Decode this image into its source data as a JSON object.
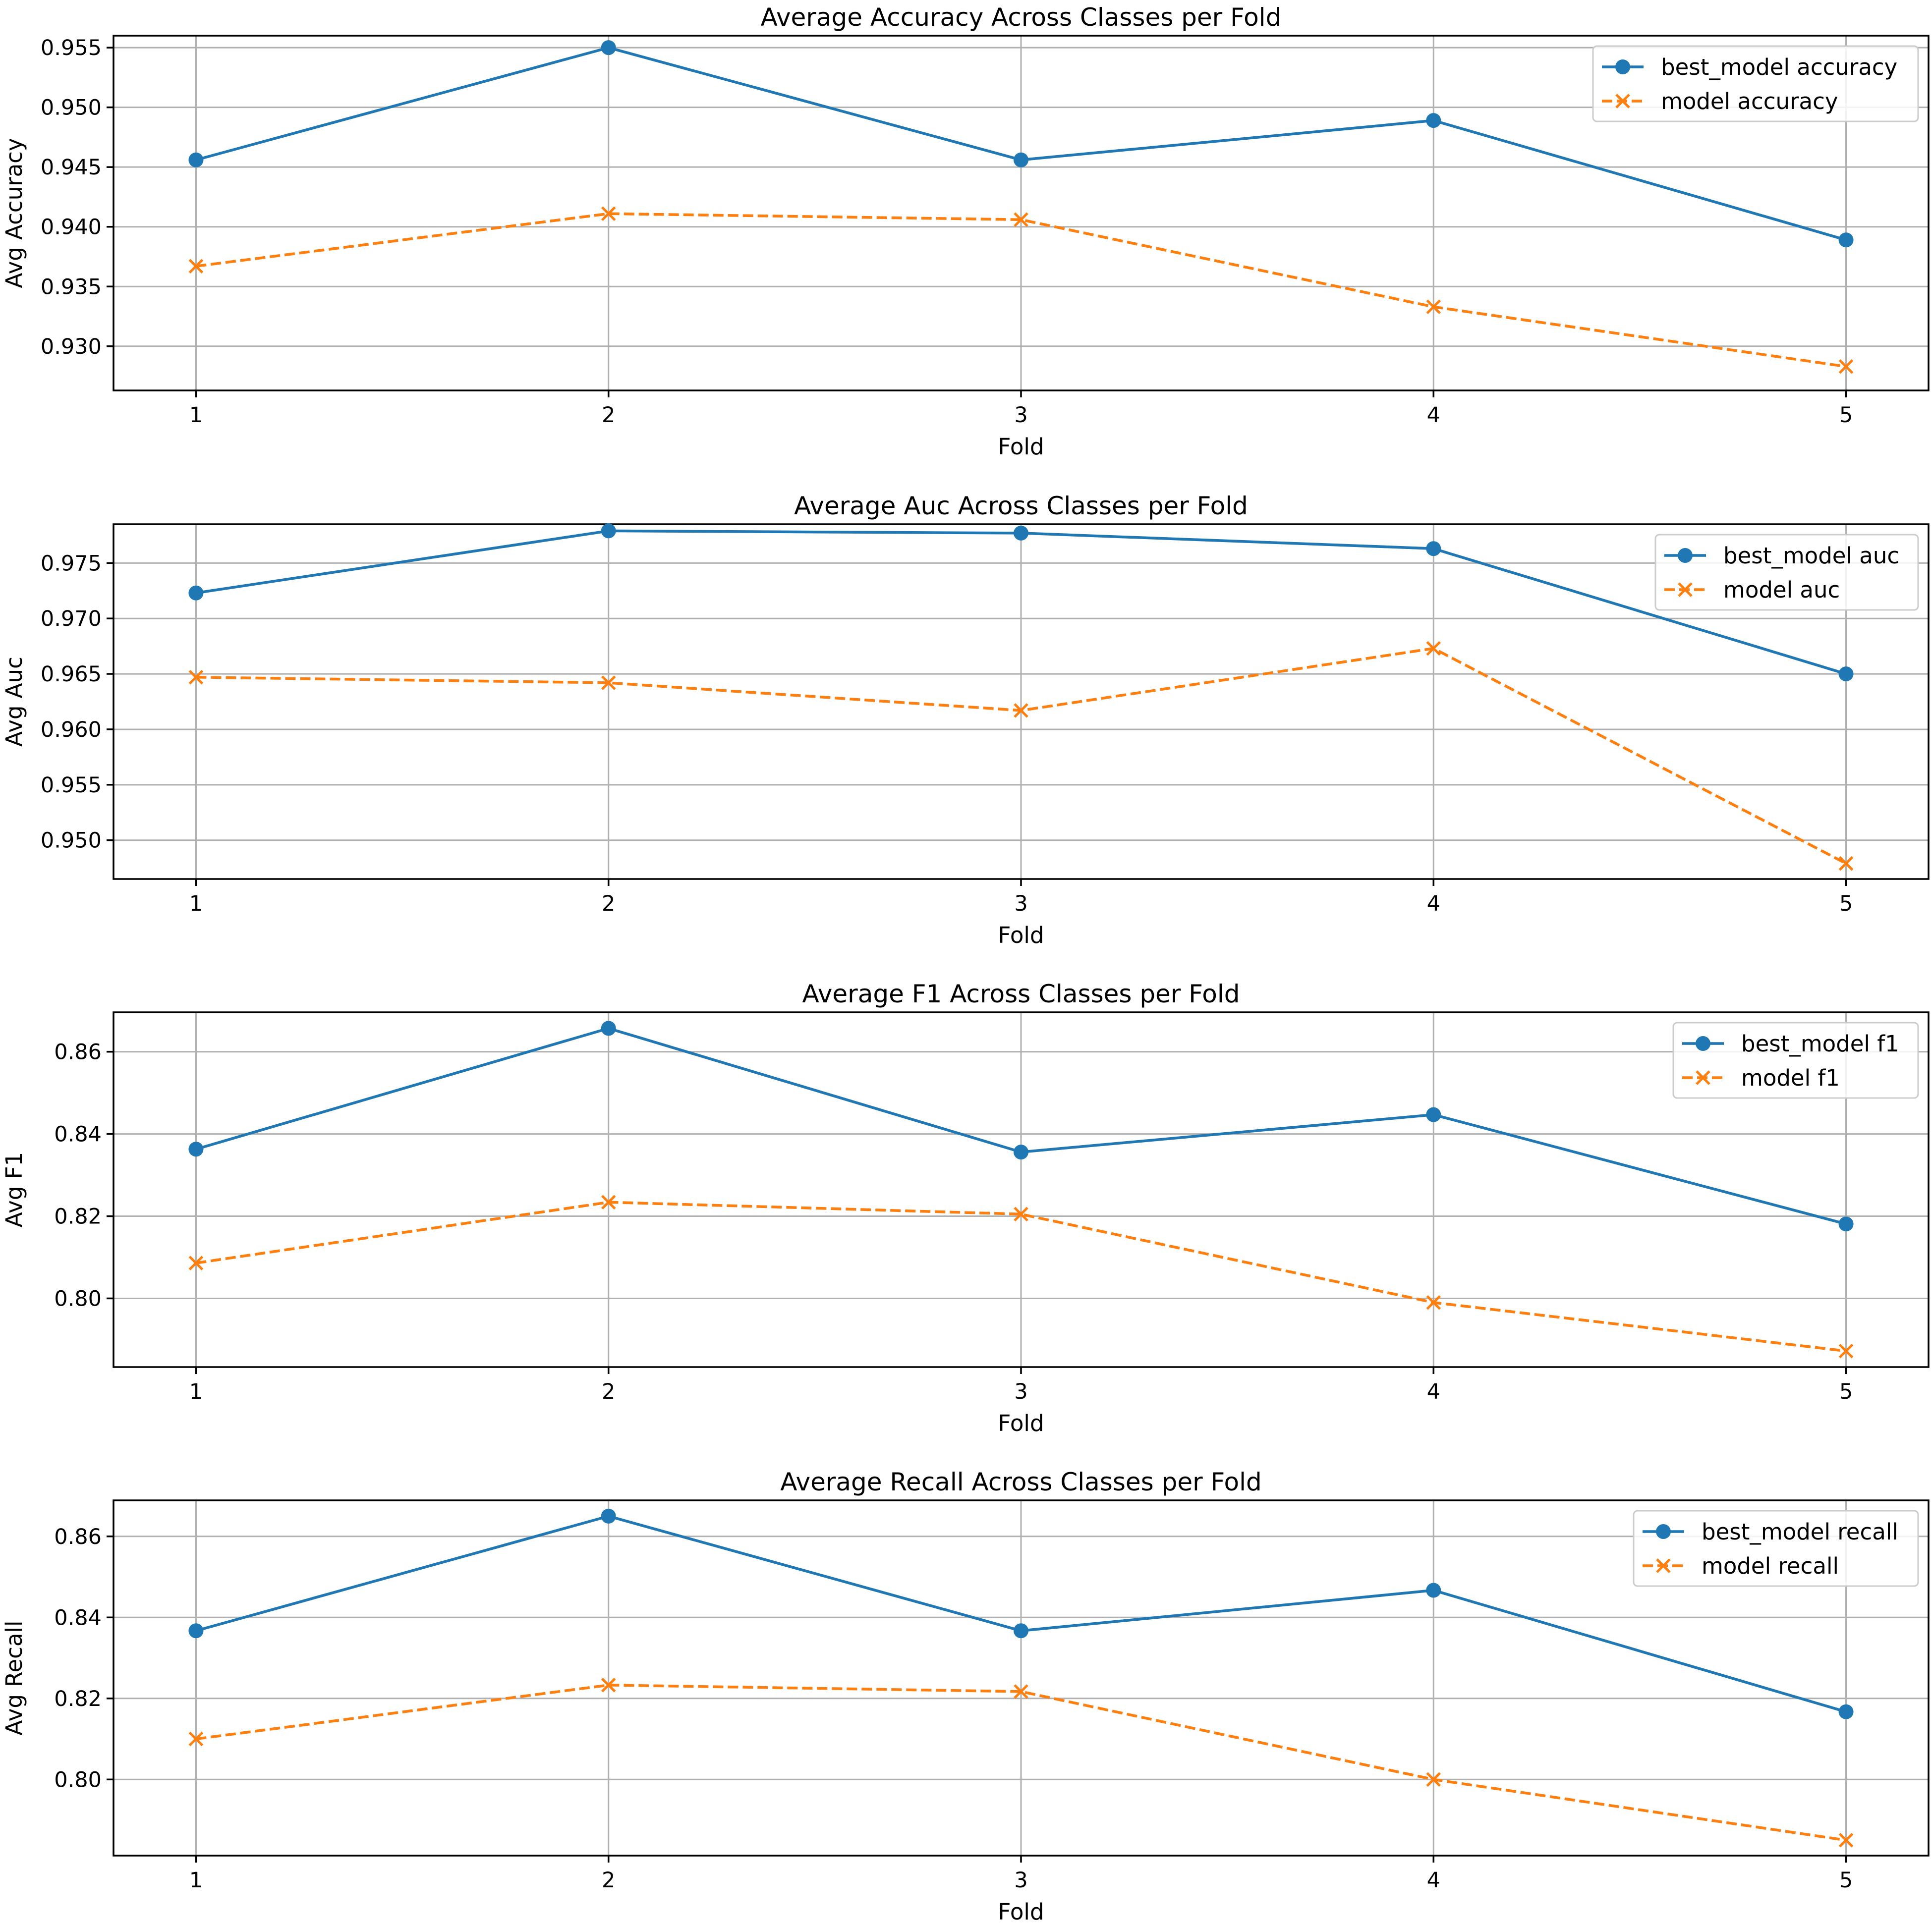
{
  "chart_data": [
    {
      "type": "line",
      "title": "Average Accuracy Across Classes per Fold",
      "xlabel": "Fold",
      "ylabel": "Avg Accuracy",
      "x": [
        1,
        2,
        3,
        4,
        5
      ],
      "x_ticks": [
        "1",
        "2",
        "3",
        "4",
        "5"
      ],
      "xlim": [
        0.8,
        5.2
      ],
      "ylim": [
        0.9263,
        0.956
      ],
      "y_ticks": [
        0.93,
        0.935,
        0.94,
        0.945,
        0.95,
        0.955
      ],
      "y_tick_labels": [
        "0.930",
        "0.935",
        "0.940",
        "0.945",
        "0.950",
        "0.955"
      ],
      "grid": true,
      "legend_position": "top-right",
      "series": [
        {
          "name": "best_model accuracy",
          "color": "#1f77b4",
          "style": "solid",
          "marker": "circle",
          "values": [
            0.9456,
            0.955,
            0.9456,
            0.9489,
            0.9389
          ]
        },
        {
          "name": "model accuracy",
          "color": "#ff7f0e",
          "style": "dashed",
          "marker": "x",
          "values": [
            0.9367,
            0.9411,
            0.9406,
            0.9333,
            0.9283
          ]
        }
      ]
    },
    {
      "type": "line",
      "title": "Average Auc Across Classes per Fold",
      "xlabel": "Fold",
      "ylabel": "Avg Auc",
      "x": [
        1,
        2,
        3,
        4,
        5
      ],
      "x_ticks": [
        "1",
        "2",
        "3",
        "4",
        "5"
      ],
      "xlim": [
        0.8,
        5.2
      ],
      "ylim": [
        0.9465,
        0.9785
      ],
      "y_ticks": [
        0.95,
        0.955,
        0.96,
        0.965,
        0.97,
        0.975
      ],
      "y_tick_labels": [
        "0.950",
        "0.955",
        "0.960",
        "0.965",
        "0.970",
        "0.975"
      ],
      "grid": true,
      "legend_position": "top-right",
      "series": [
        {
          "name": "best_model auc",
          "color": "#1f77b4",
          "style": "solid",
          "marker": "circle",
          "values": [
            0.9723,
            0.9779,
            0.9777,
            0.9763,
            0.965
          ]
        },
        {
          "name": "model auc",
          "color": "#ff7f0e",
          "style": "dashed",
          "marker": "x",
          "values": [
            0.9647,
            0.9642,
            0.9617,
            0.9673,
            0.9479
          ]
        }
      ]
    },
    {
      "type": "line",
      "title": "Average F1 Across Classes per Fold",
      "xlabel": "Fold",
      "ylabel": "Avg F1",
      "x": [
        1,
        2,
        3,
        4,
        5
      ],
      "x_ticks": [
        "1",
        "2",
        "3",
        "4",
        "5"
      ],
      "xlim": [
        0.8,
        5.2
      ],
      "ylim": [
        0.7833,
        0.8696
      ],
      "y_ticks": [
        0.8,
        0.82,
        0.84,
        0.86
      ],
      "y_tick_labels": [
        "0.80",
        "0.82",
        "0.84",
        "0.86"
      ],
      "grid": true,
      "legend_position": "top-right",
      "series": [
        {
          "name": "best_model f1",
          "color": "#1f77b4",
          "style": "solid",
          "marker": "circle",
          "values": [
            0.8363,
            0.8657,
            0.8356,
            0.8447,
            0.8181
          ]
        },
        {
          "name": "model f1",
          "color": "#ff7f0e",
          "style": "dashed",
          "marker": "x",
          "values": [
            0.8086,
            0.8234,
            0.8205,
            0.799,
            0.7872
          ]
        }
      ]
    },
    {
      "type": "line",
      "title": "Average Recall Across Classes per Fold",
      "xlabel": "Fold",
      "ylabel": "Avg Recall",
      "x": [
        1,
        2,
        3,
        4,
        5
      ],
      "x_ticks": [
        "1",
        "2",
        "3",
        "4",
        "5"
      ],
      "xlim": [
        0.8,
        5.2
      ],
      "ylim": [
        0.7812,
        0.8689
      ],
      "y_ticks": [
        0.8,
        0.82,
        0.84,
        0.86
      ],
      "y_tick_labels": [
        "0.80",
        "0.82",
        "0.84",
        "0.86"
      ],
      "grid": true,
      "legend_position": "top-right",
      "series": [
        {
          "name": "best_model recall",
          "color": "#1f77b4",
          "style": "solid",
          "marker": "circle",
          "values": [
            0.8367,
            0.865,
            0.8367,
            0.8467,
            0.8167
          ]
        },
        {
          "name": "model recall",
          "color": "#ff7f0e",
          "style": "dashed",
          "marker": "x",
          "values": [
            0.81,
            0.8233,
            0.8217,
            0.8,
            0.785
          ]
        }
      ]
    }
  ]
}
